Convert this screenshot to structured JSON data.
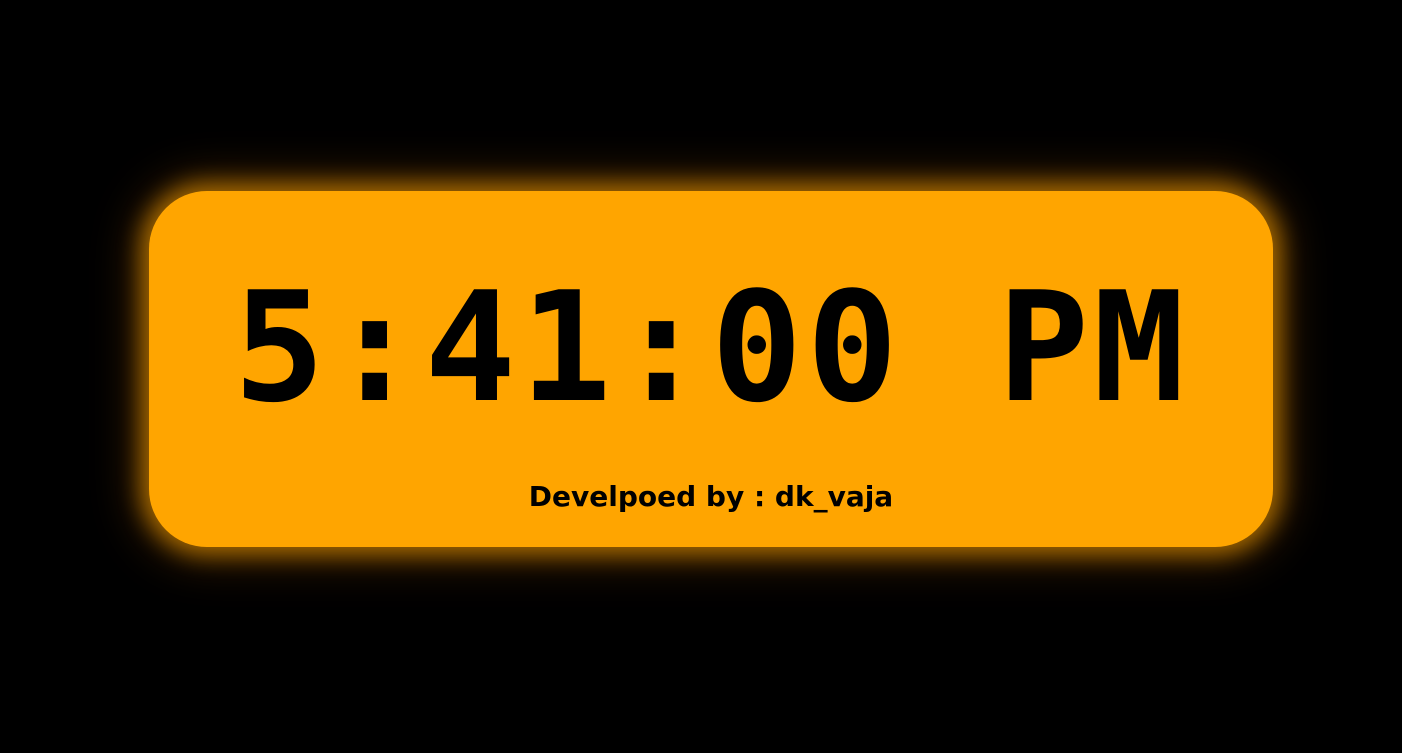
{
  "clock": {
    "time": "5:41:00 PM",
    "credit": "Develpoed by : dk_vaja"
  },
  "colors": {
    "background": "#000000",
    "card": "#ffa500",
    "text": "#000000"
  }
}
